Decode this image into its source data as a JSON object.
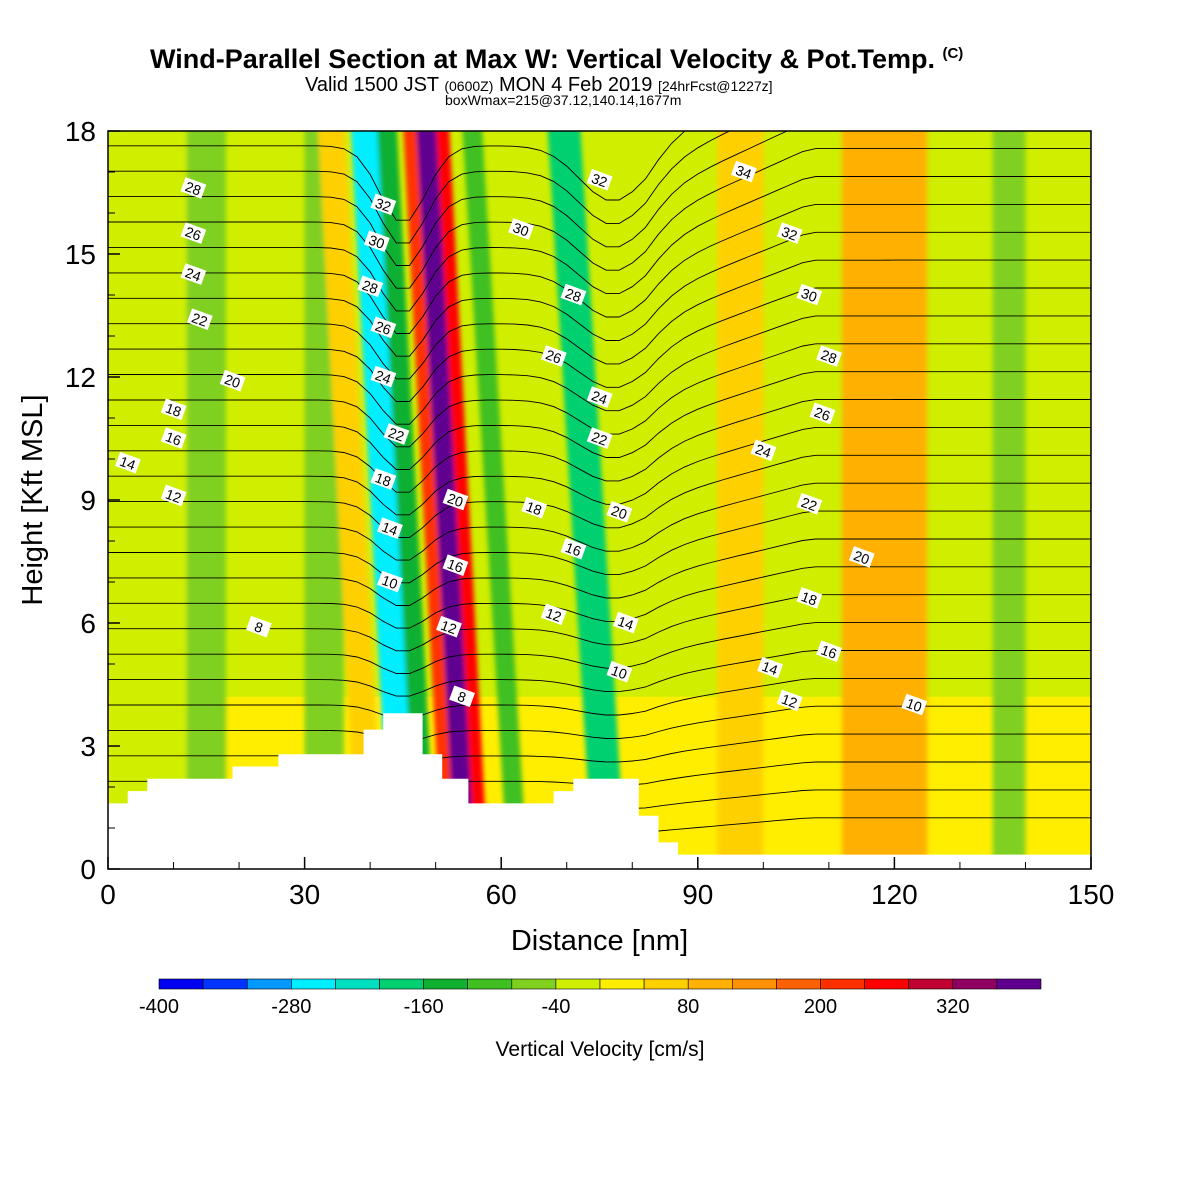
{
  "header": {
    "title": "Wind-Parallel Section at Max W: Vertical Velocity & Pot.Temp.",
    "copyright_mark": "(C)",
    "valid_prefix": "Valid 1500 JST",
    "valid_utc": "(0600Z)",
    "valid_date": "MON 4 Feb 2019",
    "forecast": "[24hrFcst@1227z]",
    "box_info": "boxWmax=215@37.12,140.14,1677m"
  },
  "chart_data": {
    "type": "heatmap",
    "xlabel": "Distance [nm]",
    "ylabel": "Height [Kft MSL]",
    "xlim": [
      0,
      150
    ],
    "ylim": [
      0,
      18
    ],
    "x_ticks": [
      0,
      30,
      60,
      90,
      120,
      150
    ],
    "y_ticks": [
      0,
      3,
      6,
      9,
      12,
      15,
      18
    ],
    "colorbar": {
      "label": "Vertical Velocity [cm/s]",
      "tick_labels": [
        -400,
        -280,
        -160,
        -40,
        80,
        200,
        320
      ],
      "bins": [
        -400,
        -360,
        -320,
        -280,
        -240,
        -200,
        -160,
        -120,
        -80,
        -40,
        0,
        40,
        80,
        120,
        160,
        200,
        240,
        280,
        320,
        360,
        400
      ],
      "colors": [
        "#0000f0",
        "#0033ff",
        "#0099ff",
        "#00eeff",
        "#00e0c0",
        "#00d070",
        "#10b030",
        "#40c020",
        "#80d020",
        "#d0ee00",
        "#ffee00",
        "#ffd000",
        "#ffb000",
        "#ff9000",
        "#ff6000",
        "#ff3000",
        "#ff0000",
        "#c00030",
        "#900060",
        "#600090"
      ]
    },
    "vertical_velocity_bands": [
      {
        "x_range": [
          0,
          12
        ],
        "w_class": "-40 to 0"
      },
      {
        "x_range": [
          12,
          18
        ],
        "w_class": "-80 to -40"
      },
      {
        "x_range": [
          30,
          36
        ],
        "w_class": "-80 to -40"
      },
      {
        "x_range": [
          38,
          42
        ],
        "w_class": "40 to 80"
      },
      {
        "x_range": [
          43,
          47
        ],
        "w_class": "-280 to -240"
      },
      {
        "x_range": [
          47,
          50
        ],
        "w_class": "-160 to -120"
      },
      {
        "x_range": [
          51,
          53
        ],
        "w_class": "200 to 240"
      },
      {
        "x_range": [
          53,
          56
        ],
        "w_class": "360 to 400"
      },
      {
        "x_range": [
          56,
          58
        ],
        "w_class": "240 to 280"
      },
      {
        "x_range": [
          61,
          64
        ],
        "w_class": "-120 to -80"
      },
      {
        "x_range": [
          74,
          79
        ],
        "w_class": "-200 to -160"
      },
      {
        "x_range": [
          93,
          100
        ],
        "w_class": "40 to 80"
      },
      {
        "x_range": [
          112,
          125
        ],
        "w_class": "80 to 120"
      },
      {
        "x_range": [
          135,
          140
        ],
        "w_class": "-80 to -40"
      }
    ],
    "contour_field": "Potential temperature",
    "potential_temperature_labels": [
      {
        "value": 28,
        "x": 13,
        "y": 16.6
      },
      {
        "value": 26,
        "x": 13,
        "y": 15.5
      },
      {
        "value": 24,
        "x": 13,
        "y": 14.5
      },
      {
        "value": 22,
        "x": 14,
        "y": 13.4
      },
      {
        "value": 20,
        "x": 19,
        "y": 11.9
      },
      {
        "value": 18,
        "x": 10,
        "y": 11.2
      },
      {
        "value": 16,
        "x": 10,
        "y": 10.5
      },
      {
        "value": 14,
        "x": 3,
        "y": 9.9
      },
      {
        "value": 12,
        "x": 10,
        "y": 9.1
      },
      {
        "value": 8,
        "x": 23,
        "y": 5.9
      },
      {
        "value": 32,
        "x": 42,
        "y": 16.2
      },
      {
        "value": 30,
        "x": 41,
        "y": 15.3
      },
      {
        "value": 28,
        "x": 40,
        "y": 14.2
      },
      {
        "value": 26,
        "x": 42,
        "y": 13.2
      },
      {
        "value": 24,
        "x": 42,
        "y": 12.0
      },
      {
        "value": 22,
        "x": 44,
        "y": 10.6
      },
      {
        "value": 18,
        "x": 42,
        "y": 9.5
      },
      {
        "value": 14,
        "x": 43,
        "y": 8.3
      },
      {
        "value": 10,
        "x": 43,
        "y": 7.0
      },
      {
        "value": 20,
        "x": 53,
        "y": 9.0
      },
      {
        "value": 16,
        "x": 53,
        "y": 7.4
      },
      {
        "value": 12,
        "x": 52,
        "y": 5.9
      },
      {
        "value": 8,
        "x": 54,
        "y": 4.2
      },
      {
        "value": 32,
        "x": 75,
        "y": 16.8
      },
      {
        "value": 30,
        "x": 63,
        "y": 15.6
      },
      {
        "value": 28,
        "x": 71,
        "y": 14.0
      },
      {
        "value": 26,
        "x": 68,
        "y": 12.5
      },
      {
        "value": 24,
        "x": 75,
        "y": 11.5
      },
      {
        "value": 22,
        "x": 75,
        "y": 10.5
      },
      {
        "value": 18,
        "x": 65,
        "y": 8.8
      },
      {
        "value": 16,
        "x": 71,
        "y": 7.8
      },
      {
        "value": 12,
        "x": 68,
        "y": 6.2
      },
      {
        "value": 20,
        "x": 78,
        "y": 8.7
      },
      {
        "value": 14,
        "x": 79,
        "y": 6.0
      },
      {
        "value": 10,
        "x": 78,
        "y": 4.8
      },
      {
        "value": 34,
        "x": 97,
        "y": 17.0
      },
      {
        "value": 32,
        "x": 104,
        "y": 15.5
      },
      {
        "value": 30,
        "x": 107,
        "y": 14.0
      },
      {
        "value": 28,
        "x": 110,
        "y": 12.5
      },
      {
        "value": 26,
        "x": 109,
        "y": 11.1
      },
      {
        "value": 24,
        "x": 100,
        "y": 10.2
      },
      {
        "value": 22,
        "x": 107,
        "y": 8.9
      },
      {
        "value": 20,
        "x": 115,
        "y": 7.6
      },
      {
        "value": 18,
        "x": 107,
        "y": 6.6
      },
      {
        "value": 16,
        "x": 110,
        "y": 5.3
      },
      {
        "value": 14,
        "x": 101,
        "y": 4.9
      },
      {
        "value": 12,
        "x": 104,
        "y": 4.1
      },
      {
        "value": 10,
        "x": 123,
        "y": 4.0
      }
    ],
    "terrain_profile": [
      [
        0,
        1.6
      ],
      [
        3,
        1.6
      ],
      [
        3,
        1.9
      ],
      [
        6,
        1.9
      ],
      [
        6,
        2.2
      ],
      [
        19,
        2.2
      ],
      [
        19,
        2.5
      ],
      [
        26,
        2.5
      ],
      [
        26,
        2.8
      ],
      [
        39,
        2.8
      ],
      [
        39,
        3.4
      ],
      [
        42,
        3.4
      ],
      [
        42,
        3.8
      ],
      [
        48,
        3.8
      ],
      [
        48,
        2.8
      ],
      [
        51,
        2.8
      ],
      [
        51,
        2.2
      ],
      [
        55,
        2.2
      ],
      [
        55,
        1.6
      ],
      [
        68,
        1.6
      ],
      [
        68,
        1.9
      ],
      [
        71,
        1.9
      ],
      [
        71,
        2.2
      ],
      [
        81,
        2.2
      ],
      [
        81,
        1.3
      ],
      [
        84,
        1.3
      ],
      [
        84,
        0.65
      ],
      [
        87,
        0.65
      ],
      [
        87,
        0.35
      ],
      [
        152,
        0.35
      ]
    ]
  }
}
